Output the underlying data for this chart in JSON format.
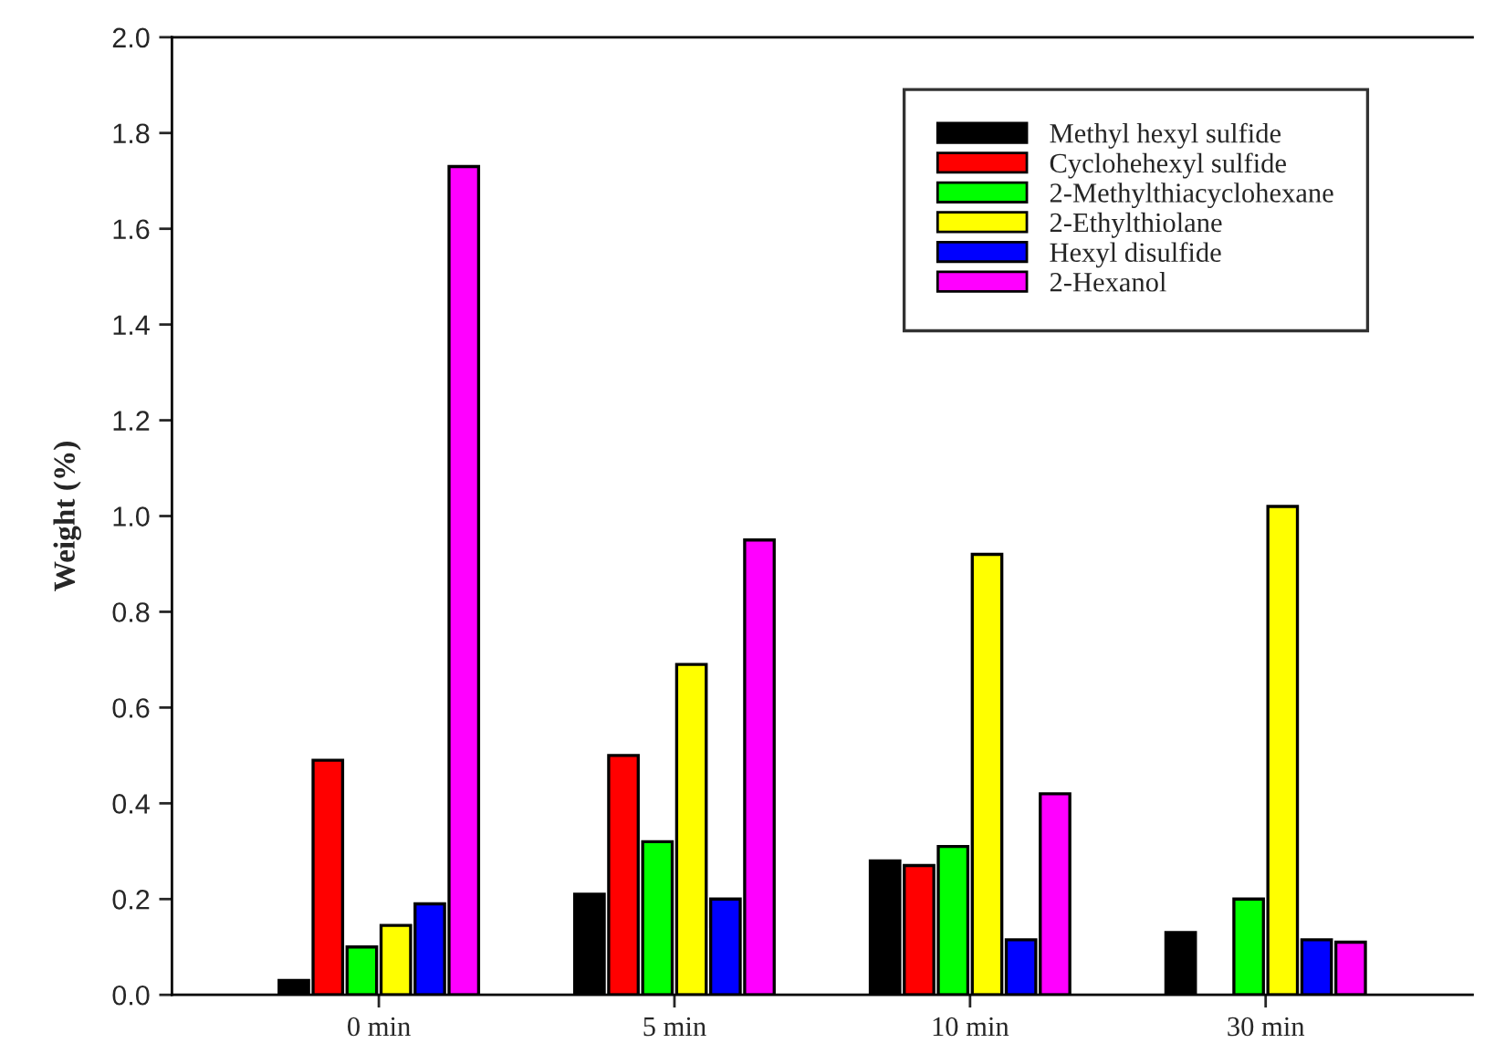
{
  "chart_data": {
    "type": "bar",
    "ylabel": "Weight (%)",
    "categories": [
      "0 min",
      "5 min",
      "10 min",
      "30 min"
    ],
    "series": [
      {
        "name": "Methyl hexyl sulfide",
        "color": "#000000",
        "values": [
          0.03,
          0.21,
          0.28,
          0.13
        ]
      },
      {
        "name": "Cyclohehexyl sulfide",
        "color": "#ff0000",
        "values": [
          0.49,
          0.5,
          0.27,
          null
        ]
      },
      {
        "name": "2-Methylthiacyclohexane",
        "color": "#00ff00",
        "values": [
          0.1,
          0.32,
          0.31,
          0.2
        ]
      },
      {
        "name": "2-Ethylthiolane",
        "color": "#ffff00",
        "values": [
          0.145,
          0.69,
          0.92,
          1.02
        ]
      },
      {
        "name": "Hexyl disulfide",
        "color": "#0000ff",
        "values": [
          0.19,
          0.2,
          0.115,
          0.115
        ]
      },
      {
        "name": "2-Hexanol",
        "color": "#ff00ff",
        "values": [
          1.73,
          0.95,
          0.42,
          0.11
        ]
      }
    ],
    "ylim": [
      0,
      2.0
    ],
    "yticks": [
      {
        "value": 0,
        "label": "0.0"
      },
      {
        "value": 0.2,
        "label": "0.2"
      },
      {
        "value": 0.4,
        "label": "0.4"
      },
      {
        "value": 0.6,
        "label": "0.6"
      },
      {
        "value": 0.8,
        "label": "0.8"
      },
      {
        "value": 1.0,
        "label": "1.0"
      },
      {
        "value": 1.2,
        "label": "1.2"
      },
      {
        "value": 1.4,
        "label": "1.4"
      },
      {
        "value": 1.6,
        "label": "1.6"
      },
      {
        "value": 1.8,
        "label": "1.8"
      },
      {
        "value": 2.0,
        "label": "2.0"
      }
    ],
    "grid": false,
    "legend": "top right"
  }
}
